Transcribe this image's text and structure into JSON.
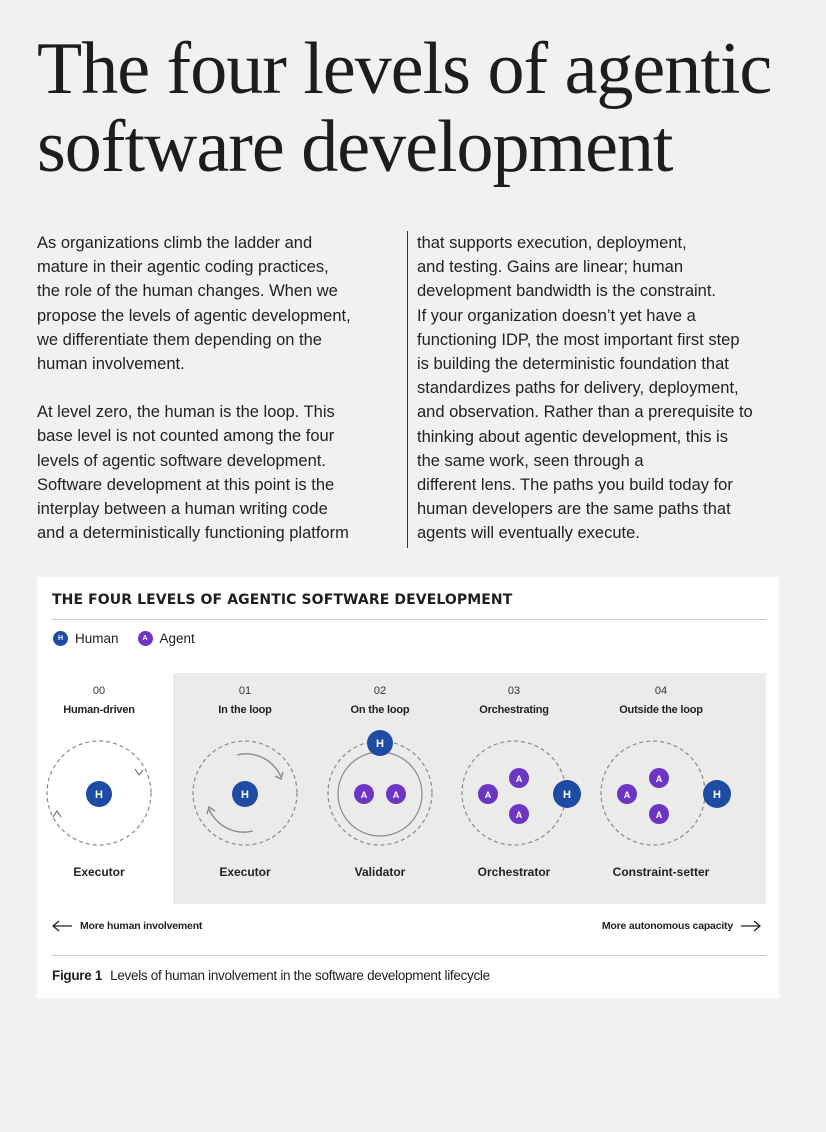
{
  "title": "The four levels of agentic software development",
  "body": {
    "col1_p1": "As organizations climb the ladder and\nmature in their agentic coding practices,\nthe role of the human changes. When we\npropose the levels of agentic development,\nwe differentiate them depending on the\nhuman involvement.",
    "col1_p2": "At level zero, the human is the loop. This\nbase level is not counted among the four\nlevels of agentic software development.\nSoftware development at this point is the\ninterplay between a human writing code\nand a deterministically functioning platform",
    "col2_p1": "that supports execution, deployment,\nand testing. Gains are linear; human\ndevelopment bandwidth is the constraint.\nIf your organization doesn’t yet have a\nfunctioning IDP, the most important first step\nis building the deterministic foundation that\nstandardizes paths for delivery, deployment,\nand observation. Rather than a prerequisite to\nthinking about agentic development, this is\nthe same work, seen through a\ndifferent lens. The paths you build today for\nhuman developers are the same paths that\nagents will eventually execute."
  },
  "figure": {
    "title": "THE FOUR LEVELS OF AGENTIC SOFTWARE DEVELOPMENT",
    "colors": {
      "human": "#1e4ba3",
      "agent": "#6c35c4",
      "panel": "#ebebea"
    },
    "legend": [
      {
        "glyph": "H",
        "label": "Human"
      },
      {
        "glyph": "A",
        "label": "Agent"
      }
    ],
    "levels": [
      {
        "num": "00",
        "name": "Human-driven",
        "role": "Executor"
      },
      {
        "num": "01",
        "name": "In the loop",
        "role": "Executor"
      },
      {
        "num": "02",
        "name": "On the loop",
        "role": "Validator"
      },
      {
        "num": "03",
        "name": "Orchestrating",
        "role": "Orchestrator"
      },
      {
        "num": "04",
        "name": "Outside the loop",
        "role": "Constraint-setter"
      }
    ],
    "axis_left": "More human involvement",
    "axis_right": "More autonomous capacity",
    "caption_label": "Figure 1",
    "caption_text": "Levels of human involvement in the software development lifecycle"
  }
}
